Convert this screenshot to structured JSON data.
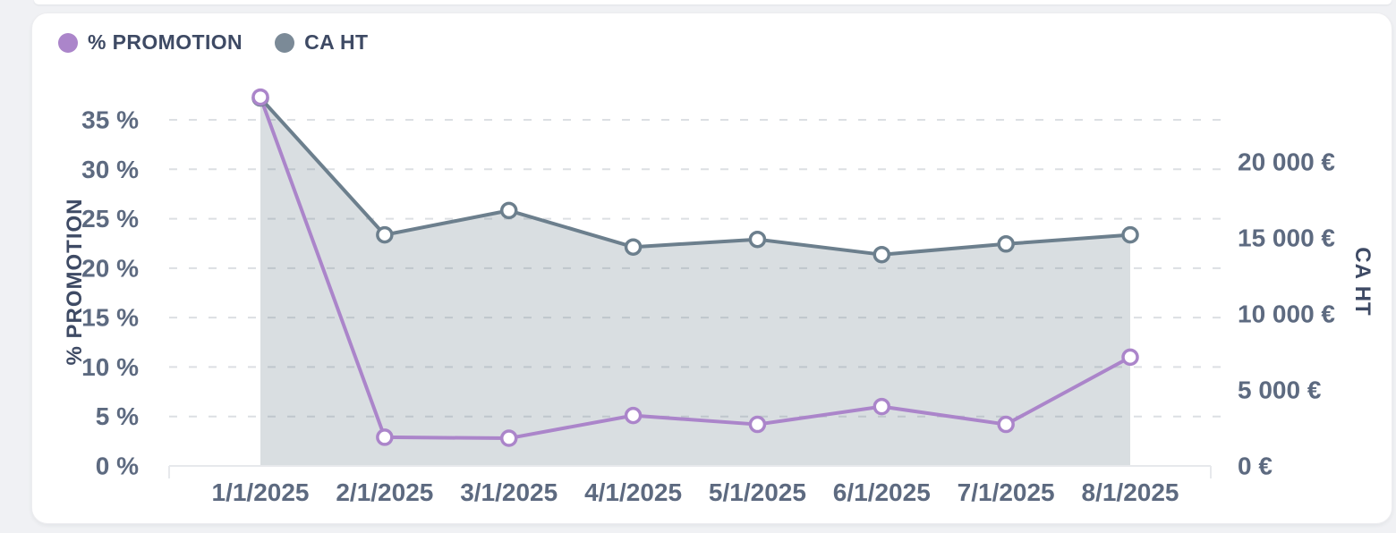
{
  "page": {
    "background_color": "#f0f1f4"
  },
  "chart_data": {
    "type": "line",
    "title": "",
    "categories": [
      "1/1/2025",
      "2/1/2025",
      "3/1/2025",
      "4/1/2025",
      "5/1/2025",
      "6/1/2025",
      "7/1/2025",
      "8/1/2025"
    ],
    "series": [
      {
        "name": "% PROMOTION",
        "axis": "left",
        "line_color": "#ab85ca",
        "legend_color": "#ab85ca",
        "marker": "open-circle",
        "values": [
          37.3,
          2.9,
          2.8,
          5.1,
          4.2,
          6.0,
          4.2,
          11.0
        ]
      },
      {
        "name": "CA HT",
        "axis": "right",
        "line_color": "#6c7f8d",
        "legend_color": "#7b8a97",
        "marker": "open-circle",
        "area_fill": "rgba(107,126,141,0.26)",
        "values": [
          24200,
          15200,
          16800,
          14400,
          14900,
          13900,
          14600,
          15200
        ]
      }
    ],
    "left_axis": {
      "title": "% PROMOTION",
      "unit": "%",
      "min": 0,
      "max": 35,
      "ticks": [
        {
          "value": 0,
          "label": "0 %"
        },
        {
          "value": 5,
          "label": "5 %"
        },
        {
          "value": 10,
          "label": "10 %"
        },
        {
          "value": 15,
          "label": "15 %"
        },
        {
          "value": 20,
          "label": "20 %"
        },
        {
          "value": 25,
          "label": "25 %"
        },
        {
          "value": 30,
          "label": "30 %"
        },
        {
          "value": 35,
          "label": "35 %"
        }
      ]
    },
    "right_axis": {
      "title": "CA HT",
      "unit": "€",
      "min": 0,
      "max": 20000,
      "ticks": [
        {
          "value": 0,
          "label": "0 €"
        },
        {
          "value": 5000,
          "label": "5 000 €"
        },
        {
          "value": 10000,
          "label": "10 000 €"
        },
        {
          "value": 15000,
          "label": "15 000 €"
        },
        {
          "value": 20000,
          "label": "20 000 €"
        }
      ]
    },
    "grid": {
      "show": true,
      "style": "dashed",
      "color": "#dcdfe3"
    },
    "legend": {
      "position": "top-left"
    },
    "text_colors": {
      "legend": "#3e4a64",
      "ticks": "#5d6a80"
    }
  }
}
